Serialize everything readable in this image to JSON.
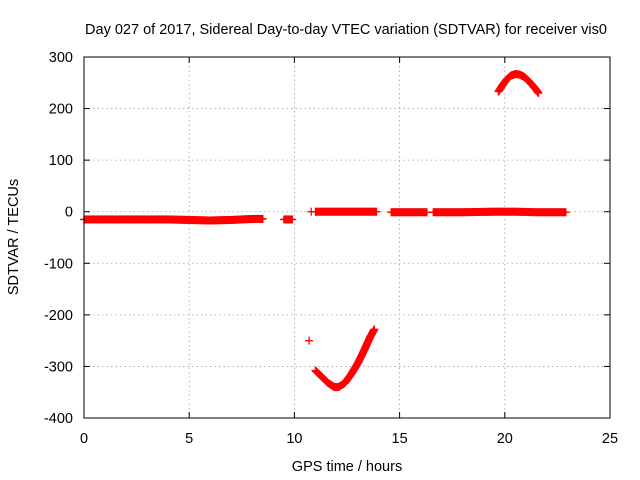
{
  "chart_data": {
    "type": "scatter",
    "title": "Day 027 of 2017, Sidereal Day-to-day VTEC variation (SDTVAR) for receiver vis0",
    "xlabel": "GPS time / hours",
    "ylabel": "SDTVAR / TECUs",
    "xlim": [
      0,
      25
    ],
    "ylim": [
      -400,
      300
    ],
    "xticks": [
      0,
      5,
      10,
      15,
      20,
      25
    ],
    "yticks": [
      -400,
      -300,
      -200,
      -100,
      0,
      100,
      200,
      300
    ],
    "xtick_labels": [
      "0",
      "5",
      "10",
      "15",
      "20",
      "25"
    ],
    "ytick_labels": [
      "-400",
      "-300",
      "-200",
      "-100",
      "0",
      "100",
      "200",
      "300"
    ],
    "grid": true,
    "legend": "none",
    "marker": "+",
    "color": "#ff0000",
    "segments": [
      {
        "x": [
          0.0,
          1.0,
          2.0,
          3.0,
          4.0,
          5.0,
          6.0,
          7.0,
          8.0,
          8.5
        ],
        "y": [
          -15,
          -15,
          -15,
          -15,
          -15,
          -16,
          -17,
          -16,
          -14,
          -14
        ]
      },
      {
        "x": [
          9.5,
          9.9
        ],
        "y": [
          -15,
          -15
        ]
      },
      {
        "x": [
          10.8
        ],
        "y": [
          0
        ]
      },
      {
        "x": [
          11.0,
          12.0,
          13.0,
          13.9
        ],
        "y": [
          0,
          0,
          0,
          0
        ]
      },
      {
        "x": [
          14.6,
          15.5,
          16.3
        ],
        "y": [
          -1,
          -1,
          -1
        ]
      },
      {
        "x": [
          16.6,
          18.0,
          19.5,
          20.5,
          21.5,
          22.9
        ],
        "y": [
          -1,
          -1,
          0,
          0,
          -1,
          -1
        ]
      },
      {
        "x": [
          10.7
        ],
        "y": [
          -250
        ]
      },
      {
        "x": [
          11.0,
          11.3,
          11.6,
          11.9,
          12.1,
          12.4,
          12.7,
          13.0,
          13.3,
          13.6,
          13.8
        ],
        "y": [
          -308,
          -320,
          -332,
          -340,
          -340,
          -332,
          -315,
          -295,
          -270,
          -243,
          -228
        ]
      },
      {
        "x": [
          19.7,
          19.9,
          20.1,
          20.3,
          20.5,
          20.7,
          20.9,
          21.1,
          21.3,
          21.5,
          21.6
        ],
        "y": [
          233,
          246,
          257,
          264,
          267,
          266,
          262,
          255,
          246,
          236,
          230
        ]
      }
    ]
  }
}
